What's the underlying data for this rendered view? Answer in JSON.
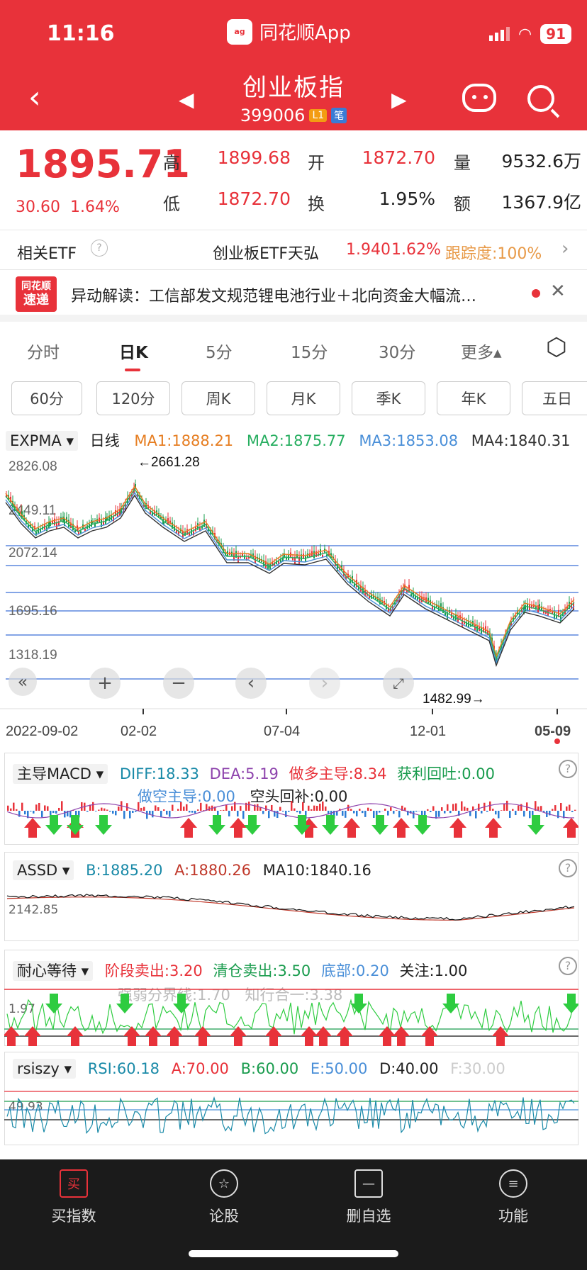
{
  "status": {
    "time": "11:16",
    "battery": "91"
  },
  "app": {
    "name": "同花顺App",
    "logo_text": "ag"
  },
  "header": {
    "title": "创业板指",
    "code": "399006",
    "tag_l1": "L1",
    "tag_bi": "笔"
  },
  "quote": {
    "price": "1895.71",
    "change_abs": "30.60",
    "change_pct": "1.64%",
    "high_label": "高",
    "high": "1899.68",
    "open_label": "开",
    "open": "1872.70",
    "vol_label": "量",
    "vol": "9532.6万",
    "low_label": "低",
    "low": "1872.70",
    "turnover_label": "换",
    "turnover": "1.95%",
    "amount_label": "额",
    "amount": "1367.9亿"
  },
  "etf": {
    "label": "相关ETF",
    "name": "创业板ETF天弘",
    "price": "1.940",
    "pct": "1.62%",
    "track": "跟踪度:100%"
  },
  "news": {
    "logo_top": "同花顺",
    "logo_bottom": "速递",
    "text": "异动解读：工信部发文规范锂电池行业＋北向资金大幅流…"
  },
  "tabs": [
    {
      "label": "分时"
    },
    {
      "label": "日K"
    },
    {
      "label": "5分"
    },
    {
      "label": "15分"
    },
    {
      "label": "30分"
    },
    {
      "label": "更多▴"
    }
  ],
  "periods": [
    {
      "label": "60分"
    },
    {
      "label": "120分"
    },
    {
      "label": "周K"
    },
    {
      "label": "月K"
    },
    {
      "label": "季K"
    },
    {
      "label": "年K"
    },
    {
      "label": "五日"
    }
  ],
  "kline": {
    "indicator": "EXPMA",
    "period_label": "日线",
    "ma1": "MA1:1888.21",
    "ma2": "MA2:1875.77",
    "ma3": "MA3:1853.08",
    "ma4": "MA4:1840.31",
    "y_labels": [
      "2826.08",
      "2449.11",
      "2072.14",
      "1695.16",
      "1318.19"
    ],
    "x_labels": [
      "2022-09-02",
      "02-02",
      "07-04",
      "12-01",
      "05-09"
    ],
    "max_label": "←2661.28",
    "min_label": "1482.99→",
    "colors": {
      "ma1": "#e67e22",
      "ma2": "#27ae60",
      "ma3": "#4a8fd8",
      "ma4": "#333333",
      "up": "#e8323a",
      "down": "#1a9c4e",
      "hline": "#3b6fd6"
    }
  },
  "macd": {
    "indicator": "主导MACD",
    "diff": "DIFF:18.33",
    "dea": "DEA:5.19",
    "long": "做多主导:8.34",
    "profit": "获利回吐:0.00",
    "short": "做空主导:0.00",
    "cover": "空头回补:0.00",
    "help": "?"
  },
  "assd": {
    "indicator": "ASSD",
    "b": "B:1885.20",
    "a": "A:1880.26",
    "ma10": "MA10:1840.16",
    "y_label": "2142.85",
    "help": "?"
  },
  "wait": {
    "indicator": "耐心等待",
    "sell1": "阶段卖出:3.20",
    "sell2": "清仓卖出:3.50",
    "bottom": "底部:0.20",
    "watch": "关注:1.00",
    "line2a": "强弱分界线:1.70",
    "line2b": "知行合一:3.38",
    "y_label": "1.97",
    "help": "?"
  },
  "rsi": {
    "indicator": "rsiszy",
    "rsi": "RSI:60.18",
    "a": "A:70.00",
    "b": "B:60.00",
    "e": "E:50.00",
    "d": "D:40.00",
    "f": "F:30.00",
    "y_label": "49.93"
  },
  "nav": [
    {
      "label": "买指数",
      "icon": "买"
    },
    {
      "label": "论股",
      "icon": "☆"
    },
    {
      "label": "删自选",
      "icon": "—"
    },
    {
      "label": "功能",
      "icon": "≡"
    }
  ]
}
